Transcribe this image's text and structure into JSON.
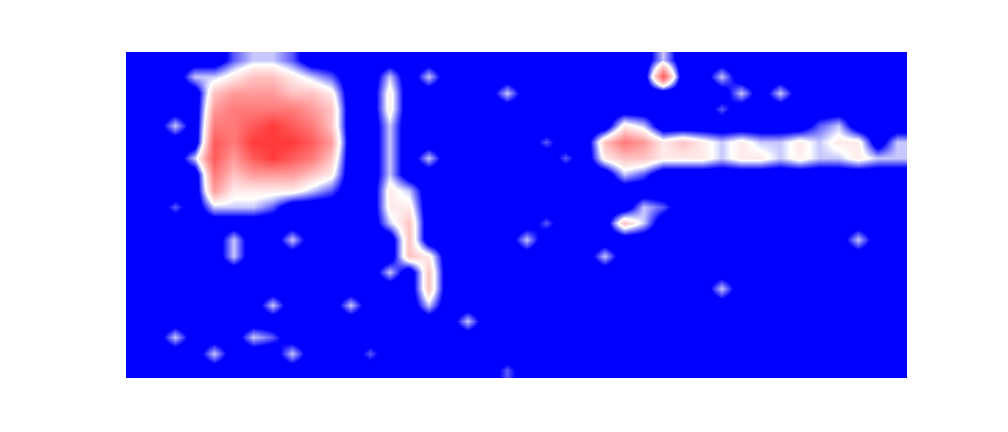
{
  "chart_data": {
    "type": "heatmap",
    "tick_labels": false,
    "zlim": [
      0,
      10
    ],
    "z": [
      [
        0,
        0,
        0,
        0,
        0,
        2,
        3,
        3,
        2,
        0,
        0,
        0,
        0,
        0,
        0,
        0,
        0,
        0,
        0,
        0,
        0,
        0,
        0,
        0,
        0,
        0,
        0,
        3,
        0,
        0,
        0,
        0,
        0,
        0,
        0,
        0,
        0,
        0,
        0,
        0
      ],
      [
        0,
        0,
        0,
        3,
        3,
        4,
        5,
        5,
        4,
        3,
        2,
        0,
        0,
        3,
        0,
        3,
        0,
        0,
        0,
        0,
        0,
        0,
        0,
        0,
        0,
        0,
        0,
        8,
        0,
        0,
        3,
        0,
        0,
        0,
        0,
        0,
        0,
        0,
        0,
        0
      ],
      [
        0,
        0,
        0,
        0,
        5,
        6,
        6,
        6,
        5,
        5,
        4,
        0,
        0,
        4,
        0,
        0,
        0,
        0,
        0,
        3,
        0,
        0,
        0,
        0,
        0,
        0,
        0,
        0,
        0,
        0,
        0,
        3,
        0,
        3,
        0,
        0,
        0,
        0,
        0,
        0
      ],
      [
        0,
        0,
        0,
        0,
        6,
        7,
        7,
        7,
        7,
        6,
        5,
        0,
        0,
        4,
        0,
        0,
        0,
        0,
        0,
        0,
        0,
        0,
        0,
        0,
        0,
        0,
        0,
        0,
        0,
        0,
        2,
        0,
        0,
        0,
        0,
        0,
        0,
        0,
        0,
        0
      ],
      [
        0,
        0,
        3,
        0,
        7,
        7,
        8,
        9,
        8,
        7,
        5,
        0,
        0,
        3,
        0,
        0,
        0,
        0,
        0,
        0,
        0,
        0,
        0,
        0,
        0,
        4,
        3,
        0,
        0,
        0,
        0,
        0,
        0,
        0,
        0,
        2,
        3,
        0,
        0,
        0
      ],
      [
        0,
        0,
        0,
        0,
        8,
        7,
        9,
        9,
        9,
        8,
        6,
        0,
        0,
        3,
        0,
        0,
        0,
        0,
        0,
        0,
        0,
        2,
        0,
        0,
        5,
        7,
        6,
        4,
        5,
        4,
        3,
        4,
        3,
        3,
        4,
        3,
        4,
        4,
        0,
        3
      ],
      [
        0,
        0,
        0,
        3,
        8,
        6,
        8,
        9,
        8,
        7,
        5,
        0,
        0,
        3,
        0,
        3,
        0,
        0,
        0,
        0,
        0,
        0,
        2,
        0,
        4,
        5,
        5,
        4,
        4,
        4,
        3,
        4,
        4,
        3,
        4,
        3,
        3,
        4,
        3,
        3
      ],
      [
        0,
        0,
        0,
        0,
        7,
        5,
        6,
        6,
        6,
        5,
        4,
        0,
        0,
        3,
        0,
        0,
        0,
        0,
        0,
        0,
        0,
        0,
        0,
        0,
        0,
        3,
        2,
        0,
        0,
        0,
        0,
        0,
        0,
        0,
        0,
        0,
        0,
        0,
        0,
        0
      ],
      [
        0,
        0,
        0,
        0,
        6,
        4,
        4,
        4,
        4,
        3,
        2,
        0,
        0,
        4,
        3,
        0,
        0,
        0,
        0,
        0,
        0,
        0,
        0,
        0,
        0,
        0,
        0,
        0,
        0,
        0,
        0,
        0,
        0,
        0,
        0,
        0,
        0,
        0,
        0,
        0
      ],
      [
        0,
        0,
        2,
        0,
        3,
        3,
        3,
        2,
        0,
        0,
        0,
        0,
        0,
        4,
        4,
        0,
        0,
        0,
        0,
        0,
        0,
        0,
        0,
        0,
        0,
        0,
        3,
        2,
        0,
        0,
        0,
        0,
        0,
        0,
        0,
        0,
        0,
        0,
        0,
        0
      ],
      [
        0,
        0,
        0,
        0,
        0,
        0,
        0,
        0,
        0,
        0,
        0,
        0,
        0,
        3,
        5,
        0,
        0,
        0,
        0,
        0,
        0,
        2,
        0,
        0,
        0,
        5,
        3,
        0,
        0,
        0,
        0,
        0,
        0,
        0,
        0,
        0,
        0,
        0,
        0,
        0
      ],
      [
        0,
        0,
        0,
        0,
        0,
        3,
        0,
        0,
        3,
        0,
        0,
        0,
        0,
        0,
        5,
        0,
        0,
        0,
        0,
        0,
        3,
        0,
        0,
        0,
        0,
        0,
        0,
        0,
        0,
        0,
        0,
        0,
        0,
        0,
        0,
        0,
        0,
        3,
        0,
        0
      ],
      [
        0,
        0,
        0,
        0,
        0,
        3,
        0,
        0,
        0,
        0,
        0,
        0,
        0,
        0,
        5,
        4,
        0,
        0,
        0,
        0,
        0,
        0,
        0,
        0,
        3,
        0,
        0,
        0,
        0,
        0,
        0,
        0,
        0,
        0,
        0,
        0,
        0,
        0,
        0,
        0
      ],
      [
        0,
        0,
        0,
        0,
        0,
        0,
        0,
        0,
        0,
        0,
        0,
        0,
        0,
        3,
        0,
        5,
        0,
        0,
        0,
        0,
        0,
        0,
        0,
        0,
        0,
        0,
        0,
        0,
        0,
        0,
        0,
        0,
        0,
        0,
        0,
        0,
        0,
        0,
        0,
        0
      ],
      [
        0,
        0,
        0,
        0,
        0,
        0,
        0,
        0,
        0,
        0,
        0,
        0,
        0,
        0,
        0,
        5,
        0,
        0,
        0,
        0,
        0,
        0,
        0,
        0,
        0,
        0,
        0,
        0,
        0,
        0,
        3,
        0,
        0,
        0,
        0,
        0,
        0,
        0,
        0,
        0
      ],
      [
        0,
        0,
        0,
        0,
        0,
        0,
        0,
        3,
        0,
        0,
        0,
        3,
        0,
        0,
        0,
        3,
        0,
        0,
        0,
        0,
        0,
        0,
        0,
        0,
        0,
        0,
        0,
        0,
        0,
        0,
        0,
        0,
        0,
        0,
        0,
        0,
        0,
        0,
        0,
        0
      ],
      [
        0,
        0,
        0,
        0,
        0,
        0,
        0,
        0,
        0,
        0,
        0,
        0,
        0,
        0,
        0,
        0,
        0,
        3,
        0,
        0,
        0,
        0,
        0,
        0,
        0,
        0,
        0,
        0,
        0,
        0,
        0,
        0,
        0,
        0,
        0,
        0,
        0,
        0,
        0,
        0
      ],
      [
        0,
        0,
        3,
        0,
        0,
        0,
        3,
        2,
        0,
        0,
        0,
        0,
        0,
        0,
        0,
        0,
        0,
        0,
        0,
        0,
        0,
        0,
        0,
        0,
        0,
        0,
        0,
        0,
        0,
        0,
        0,
        0,
        0,
        0,
        0,
        0,
        0,
        0,
        0,
        0
      ],
      [
        0,
        0,
        0,
        0,
        3,
        0,
        0,
        0,
        3,
        0,
        0,
        0,
        2,
        0,
        0,
        0,
        0,
        0,
        0,
        0,
        0,
        0,
        0,
        0,
        0,
        0,
        0,
        0,
        0,
        0,
        0,
        0,
        0,
        0,
        0,
        0,
        0,
        0,
        0,
        0
      ],
      [
        0,
        0,
        0,
        0,
        0,
        0,
        0,
        0,
        0,
        0,
        0,
        0,
        0,
        0,
        0,
        0,
        0,
        0,
        0,
        2,
        0,
        0,
        0,
        0,
        0,
        0,
        0,
        0,
        0,
        0,
        0,
        0,
        0,
        0,
        0,
        0,
        0,
        0,
        0,
        0
      ]
    ]
  }
}
